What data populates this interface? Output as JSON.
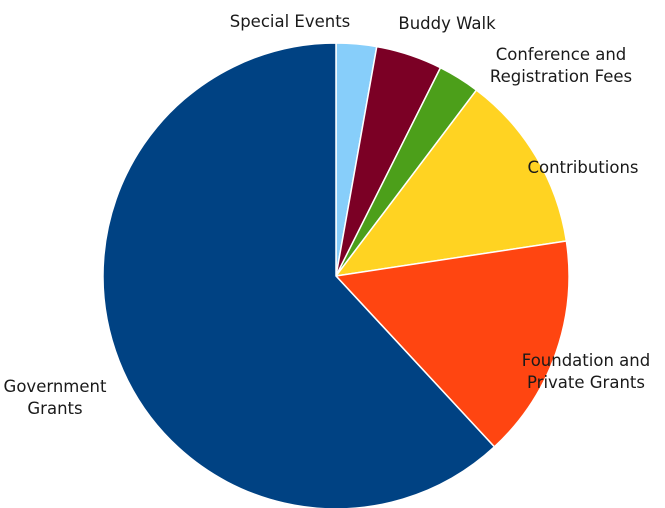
{
  "chart_data": {
    "type": "pie",
    "start_angle_deg": 0,
    "direction": "clockwise",
    "slices": [
      {
        "label": "Special Events",
        "label_lines": [
          "Special Events"
        ],
        "value": 2.8,
        "color": "#87CEFA"
      },
      {
        "label": "Buddy Walk",
        "label_lines": [
          "Buddy Walk"
        ],
        "value": 4.6,
        "color": "#7B0025"
      },
      {
        "label": "Conference and Registration Fees",
        "label_lines": [
          "Conference and",
          "Registration Fees"
        ],
        "value": 2.9,
        "color": "#4C9F1A"
      },
      {
        "label": "Contributions",
        "label_lines": [
          "Contributions"
        ],
        "value": 12.3,
        "color": "#FFD322"
      },
      {
        "label": "Foundation and Private Grants",
        "label_lines": [
          "Foundation and",
          "Private Grants"
        ],
        "value": 15.5,
        "color": "#FF4511"
      },
      {
        "label": "Government Grants",
        "label_lines": [
          "Government",
          "Grants"
        ],
        "value": 61.9,
        "color": "#004283"
      }
    ]
  }
}
